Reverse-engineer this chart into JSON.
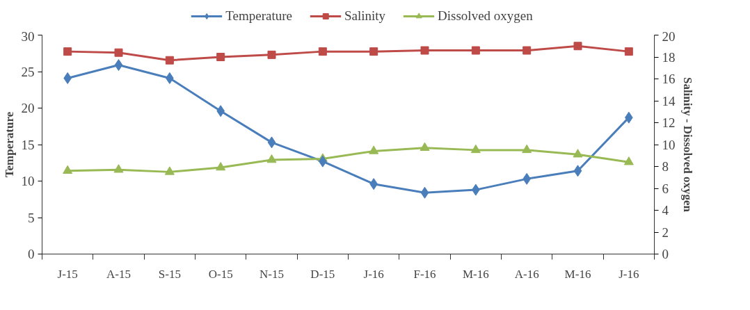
{
  "chart_data": {
    "type": "line",
    "ylabel": "Temperature",
    "y2label": "Salinity - Dissolved oxygen",
    "categories": [
      "J-15",
      "A-15",
      "S-15",
      "O-15",
      "N-15",
      "D-15",
      "J-16",
      "F-16",
      "M-16",
      "A-16",
      "M-16",
      "J-16"
    ],
    "series": [
      {
        "name": "Temperature",
        "color": "#4a7ebb",
        "marker": "diamond",
        "values": [
          24.1,
          25.9,
          24.1,
          19.6,
          15.3,
          12.7,
          9.6,
          8.4,
          8.8,
          10.3,
          11.4,
          18.7
        ]
      },
      {
        "name": "Salinity",
        "color": "#be4b48",
        "marker": "square",
        "axis": "y2",
        "values": [
          18.5,
          18.4,
          17.7,
          18.0,
          18.2,
          18.5,
          18.5,
          18.6,
          18.6,
          18.6,
          19.0,
          18.5
        ]
      },
      {
        "name": "Dissolved oxygen",
        "color": "#98b954",
        "marker": "triangle",
        "axis": "y2",
        "values": [
          7.6,
          7.7,
          7.5,
          7.9,
          8.6,
          8.7,
          9.4,
          9.7,
          9.5,
          9.5,
          9.1,
          8.4
        ]
      }
    ],
    "ylim": [
      0,
      30
    ],
    "yticks": [
      0,
      5,
      10,
      15,
      20,
      25,
      30
    ],
    "y2lim": [
      0,
      20
    ],
    "y2ticks": [
      0,
      2,
      4,
      6,
      8,
      10,
      12,
      14,
      16,
      18,
      20
    ],
    "grid": false,
    "legend": "top",
    "line_style": "solid"
  }
}
